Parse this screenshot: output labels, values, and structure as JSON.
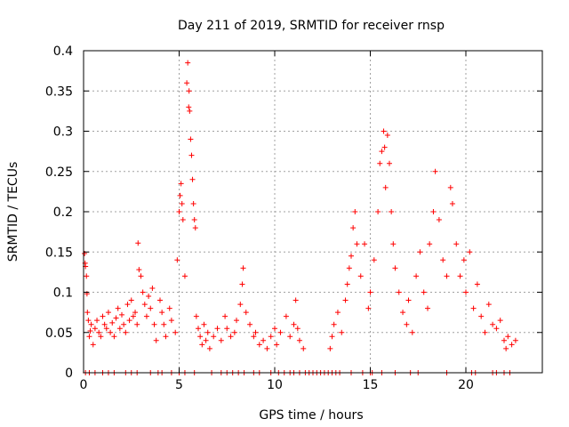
{
  "chart_data": {
    "type": "scatter",
    "title": "Day 211 of 2019, SRMTID for receiver rnsp",
    "xlabel": "GPS time / hours",
    "ylabel": "SRMTID / TECUs",
    "xlim": [
      0,
      24
    ],
    "ylim": [
      0,
      0.4
    ],
    "xticks": [
      0,
      5,
      10,
      15,
      20
    ],
    "yticks": [
      0,
      0.05,
      0.1,
      0.15,
      0.2,
      0.25,
      0.3,
      0.35,
      0.4
    ],
    "grid": true,
    "marker": "+",
    "color": "#ff0000",
    "series": [
      {
        "name": "SRMTID",
        "points": [
          [
            0.05,
            0.148
          ],
          [
            0.08,
            0.136
          ],
          [
            0.1,
            0.132
          ],
          [
            0.15,
            0.12
          ],
          [
            0.18,
            0.098
          ],
          [
            0.2,
            0.075
          ],
          [
            0.25,
            0.065
          ],
          [
            0.3,
            0.045
          ],
          [
            0.35,
            0.052
          ],
          [
            0.4,
            0.06
          ],
          [
            0.5,
            0.035
          ],
          [
            0.6,
            0.055
          ],
          [
            0.7,
            0.065
          ],
          [
            0.8,
            0.05
          ],
          [
            0.9,
            0.045
          ],
          [
            1.0,
            0.07
          ],
          [
            1.1,
            0.06
          ],
          [
            1.2,
            0.055
          ],
          [
            1.3,
            0.075
          ],
          [
            1.4,
            0.05
          ],
          [
            1.5,
            0.062
          ],
          [
            1.6,
            0.045
          ],
          [
            1.7,
            0.068
          ],
          [
            1.8,
            0.08
          ],
          [
            1.9,
            0.055
          ],
          [
            2.0,
            0.072
          ],
          [
            2.1,
            0.06
          ],
          [
            2.2,
            0.05
          ],
          [
            2.3,
            0.085
          ],
          [
            2.4,
            0.065
          ],
          [
            2.5,
            0.09
          ],
          [
            2.6,
            0.07
          ],
          [
            2.7,
            0.075
          ],
          [
            2.8,
            0.06
          ],
          [
            2.85,
            0.161
          ],
          [
            2.9,
            0.128
          ],
          [
            3.0,
            0.12
          ],
          [
            3.1,
            0.1
          ],
          [
            3.2,
            0.085
          ],
          [
            3.3,
            0.07
          ],
          [
            3.4,
            0.095
          ],
          [
            3.5,
            0.08
          ],
          [
            3.6,
            0.105
          ],
          [
            3.7,
            0.06
          ],
          [
            3.8,
            0.04
          ],
          [
            4.0,
            0.09
          ],
          [
            4.1,
            0.075
          ],
          [
            4.2,
            0.06
          ],
          [
            4.3,
            0.045
          ],
          [
            4.5,
            0.08
          ],
          [
            4.6,
            0.065
          ],
          [
            4.8,
            0.05
          ],
          [
            4.9,
            0.14
          ],
          [
            5.0,
            0.2
          ],
          [
            5.05,
            0.22
          ],
          [
            5.1,
            0.235
          ],
          [
            5.15,
            0.21
          ],
          [
            5.2,
            0.19
          ],
          [
            5.3,
            0.12
          ],
          [
            5.4,
            0.36
          ],
          [
            5.45,
            0.385
          ],
          [
            5.5,
            0.33
          ],
          [
            5.52,
            0.35
          ],
          [
            5.55,
            0.325
          ],
          [
            5.6,
            0.29
          ],
          [
            5.65,
            0.27
          ],
          [
            5.7,
            0.24
          ],
          [
            5.75,
            0.21
          ],
          [
            5.8,
            0.19
          ],
          [
            5.85,
            0.18
          ],
          [
            5.9,
            0.07
          ],
          [
            6.0,
            0.055
          ],
          [
            6.1,
            0.045
          ],
          [
            6.2,
            0.035
          ],
          [
            6.3,
            0.06
          ],
          [
            6.4,
            0.04
          ],
          [
            6.5,
            0.05
          ],
          [
            6.6,
            0.03
          ],
          [
            6.8,
            0.045
          ],
          [
            7.0,
            0.055
          ],
          [
            7.2,
            0.04
          ],
          [
            7.4,
            0.07
          ],
          [
            7.5,
            0.055
          ],
          [
            7.7,
            0.045
          ],
          [
            7.9,
            0.05
          ],
          [
            8.0,
            0.065
          ],
          [
            8.2,
            0.085
          ],
          [
            8.3,
            0.11
          ],
          [
            8.35,
            0.13
          ],
          [
            8.5,
            0.075
          ],
          [
            8.7,
            0.06
          ],
          [
            8.9,
            0.045
          ],
          [
            9.0,
            0.05
          ],
          [
            9.2,
            0.035
          ],
          [
            9.4,
            0.04
          ],
          [
            9.6,
            0.03
          ],
          [
            9.8,
            0.045
          ],
          [
            10.0,
            0.055
          ],
          [
            10.1,
            0.035
          ],
          [
            10.3,
            0.05
          ],
          [
            10.6,
            0.07
          ],
          [
            10.8,
            0.045
          ],
          [
            11.0,
            0.06
          ],
          [
            11.1,
            0.09
          ],
          [
            11.2,
            0.055
          ],
          [
            11.3,
            0.04
          ],
          [
            11.5,
            0.03
          ],
          [
            12.9,
            0.03
          ],
          [
            13.0,
            0.045
          ],
          [
            13.1,
            0.06
          ],
          [
            13.3,
            0.075
          ],
          [
            13.5,
            0.05
          ],
          [
            13.7,
            0.09
          ],
          [
            13.8,
            0.11
          ],
          [
            13.9,
            0.13
          ],
          [
            14.0,
            0.145
          ],
          [
            14.1,
            0.18
          ],
          [
            14.2,
            0.2
          ],
          [
            14.3,
            0.16
          ],
          [
            14.5,
            0.12
          ],
          [
            14.7,
            0.16
          ],
          [
            14.9,
            0.08
          ],
          [
            15.0,
            0.1
          ],
          [
            15.2,
            0.14
          ],
          [
            15.4,
            0.2
          ],
          [
            15.5,
            0.26
          ],
          [
            15.6,
            0.275
          ],
          [
            15.7,
            0.3
          ],
          [
            15.75,
            0.28
          ],
          [
            15.8,
            0.23
          ],
          [
            15.9,
            0.295
          ],
          [
            16.0,
            0.26
          ],
          [
            16.1,
            0.2
          ],
          [
            16.2,
            0.16
          ],
          [
            16.3,
            0.13
          ],
          [
            16.5,
            0.1
          ],
          [
            16.7,
            0.075
          ],
          [
            16.9,
            0.06
          ],
          [
            17.0,
            0.09
          ],
          [
            17.2,
            0.05
          ],
          [
            17.4,
            0.12
          ],
          [
            17.6,
            0.15
          ],
          [
            17.8,
            0.1
          ],
          [
            18.0,
            0.08
          ],
          [
            18.1,
            0.16
          ],
          [
            18.3,
            0.2
          ],
          [
            18.4,
            0.25
          ],
          [
            18.6,
            0.19
          ],
          [
            18.8,
            0.14
          ],
          [
            19.0,
            0.12
          ],
          [
            19.2,
            0.23
          ],
          [
            19.3,
            0.21
          ],
          [
            19.5,
            0.16
          ],
          [
            19.7,
            0.12
          ],
          [
            19.9,
            0.14
          ],
          [
            20.0,
            0.1
          ],
          [
            20.2,
            0.15
          ],
          [
            20.4,
            0.08
          ],
          [
            20.6,
            0.11
          ],
          [
            20.8,
            0.07
          ],
          [
            21.0,
            0.05
          ],
          [
            21.2,
            0.085
          ],
          [
            21.4,
            0.06
          ],
          [
            21.6,
            0.055
          ],
          [
            21.8,
            0.065
          ],
          [
            22.0,
            0.04
          ],
          [
            22.1,
            0.03
          ],
          [
            22.2,
            0.045
          ],
          [
            22.4,
            0.035
          ],
          [
            22.6,
            0.04
          ],
          [
            0.1,
            0
          ],
          [
            0.3,
            0
          ],
          [
            0.6,
            0
          ],
          [
            1.0,
            0
          ],
          [
            1.3,
            0
          ],
          [
            1.6,
            0
          ],
          [
            2.2,
            0
          ],
          [
            2.5,
            0
          ],
          [
            2.8,
            0
          ],
          [
            3.5,
            0
          ],
          [
            3.9,
            0
          ],
          [
            4.1,
            0
          ],
          [
            4.6,
            0
          ],
          [
            5.0,
            0
          ],
          [
            5.3,
            0
          ],
          [
            5.8,
            0
          ],
          [
            6.7,
            0
          ],
          [
            7.2,
            0
          ],
          [
            7.5,
            0
          ],
          [
            7.8,
            0
          ],
          [
            8.1,
            0
          ],
          [
            8.4,
            0
          ],
          [
            8.9,
            0
          ],
          [
            9.2,
            0
          ],
          [
            9.8,
            0
          ],
          [
            10.2,
            0
          ],
          [
            10.5,
            0
          ],
          [
            10.8,
            0
          ],
          [
            11.0,
            0
          ],
          [
            11.3,
            0
          ],
          [
            11.6,
            0
          ],
          [
            11.8,
            0
          ],
          [
            12.0,
            0
          ],
          [
            12.2,
            0
          ],
          [
            12.4,
            0
          ],
          [
            12.6,
            0
          ],
          [
            12.8,
            0
          ],
          [
            13.0,
            0
          ],
          [
            13.2,
            0
          ],
          [
            13.4,
            0
          ],
          [
            14.0,
            0
          ],
          [
            14.6,
            0
          ],
          [
            15.0,
            0
          ],
          [
            15.1,
            0
          ],
          [
            15.6,
            0
          ],
          [
            16.3,
            0
          ],
          [
            17.1,
            0
          ],
          [
            17.5,
            0
          ],
          [
            19.0,
            0
          ],
          [
            20.3,
            0
          ],
          [
            20.5,
            0
          ],
          [
            21.4,
            0
          ],
          [
            21.6,
            0
          ],
          [
            22.0,
            0
          ],
          [
            22.3,
            0
          ]
        ]
      }
    ]
  }
}
